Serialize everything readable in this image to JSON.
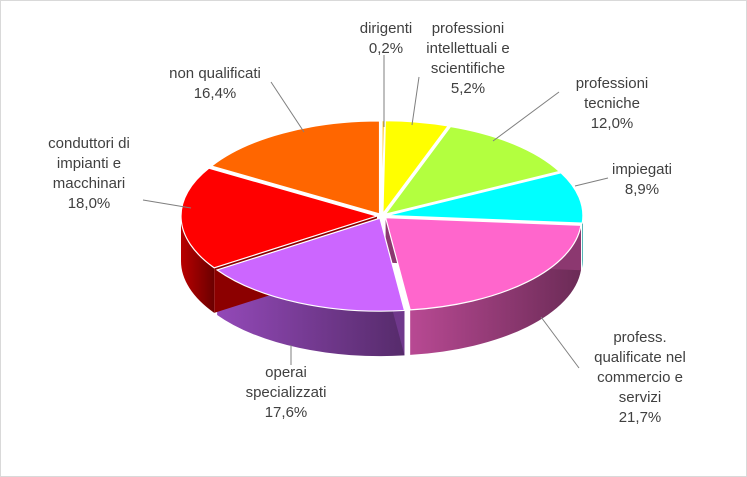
{
  "chart_data": {
    "type": "pie",
    "title": "",
    "slices": [
      {
        "lines": [
          "dirigenti"
        ],
        "value_label": "0,2%",
        "value": 0.2,
        "color": "#FFC000"
      },
      {
        "lines": [
          "professioni",
          "intellettuali  e",
          "scientifiche"
        ],
        "value_label": "5,2%",
        "value": 5.2,
        "color": "#FFFF00"
      },
      {
        "lines": [
          "professioni",
          "tecniche"
        ],
        "value_label": "12,0%",
        "value": 12.0,
        "color": "#B3FF3F"
      },
      {
        "lines": [
          "impiegati"
        ],
        "value_label": "8,9%",
        "value": 8.9,
        "color": "#00FFFF"
      },
      {
        "lines": [
          "profess.",
          "qualificate nel",
          "commercio e",
          "servizi"
        ],
        "value_label": "21,7%",
        "value": 21.7,
        "color": "#FF66CC"
      },
      {
        "lines": [
          "operai",
          "specializzati"
        ],
        "value_label": "17,6%",
        "value": 17.6,
        "color": "#CC66FF"
      },
      {
        "lines": [
          "conduttori di",
          "impianti e",
          "macchinari"
        ],
        "value_label": "18,0%",
        "value": 18.0,
        "color": "#FF0000"
      },
      {
        "lines": [
          "non qualificati"
        ],
        "value_label": "16,4%",
        "value": 16.4,
        "color": "#FF6600"
      }
    ],
    "legend": "none",
    "style": "3d-exploded-pie-with-leader-lines"
  }
}
